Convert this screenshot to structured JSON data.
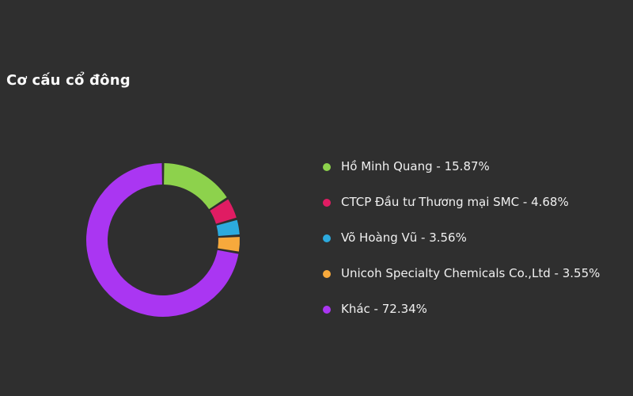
{
  "title": "Cơ cấu cổ đông",
  "colors": {
    "background": "#2f2f2f",
    "title_text": "#fafafa",
    "legend_text": "#f0f0f0"
  },
  "chart_data": {
    "type": "pie",
    "shape": "donut",
    "title": "Cơ cấu cổ đông",
    "legend_position": "right",
    "start_angle_deg": 0,
    "direction": "clockwise",
    "unit": "%",
    "slices": [
      {
        "name": "Hồ Minh Quang",
        "value": 15.87,
        "color": "#8dd24c",
        "legend_label": "Hồ Minh Quang - 15.87%"
      },
      {
        "name": "CTCP Đầu tư Thương mại SMC",
        "value": 4.68,
        "color": "#e01c63",
        "legend_label": "CTCP Đầu tư Thương mại SMC - 4.68%"
      },
      {
        "name": "Võ Hoàng Vũ",
        "value": 3.56,
        "color": "#2caade",
        "legend_label": "Võ Hoàng Vũ - 3.56%"
      },
      {
        "name": "Unicoh Specialty Chemicals Co.,Ltd",
        "value": 3.55,
        "color": "#f7a93c",
        "legend_label": "Unicoh Specialty Chemicals Co.,Ltd - 3.55%"
      },
      {
        "name": "Khác",
        "value": 72.34,
        "color": "#aa36f2",
        "legend_label": "Khác - 72.34%"
      }
    ]
  }
}
